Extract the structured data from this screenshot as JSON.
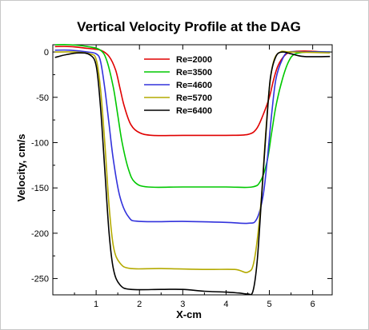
{
  "chart_data": {
    "type": "line",
    "title": "Vertical Velocity Profile at the DAG",
    "xlabel": "X-cm",
    "ylabel": "Velocity, cm/s",
    "xlim": [
      0,
      6.45
    ],
    "ylim": [
      -268,
      8
    ],
    "x_ticks": [
      1,
      2,
      3,
      4,
      5,
      6
    ],
    "y_ticks": [
      0,
      -50,
      -100,
      -150,
      -200,
      -250
    ],
    "grid": false,
    "legend_position": "top-center",
    "series": [
      {
        "name": "Re=2000",
        "color": "#e00000",
        "points": [
          [
            0.05,
            6
          ],
          [
            0.4,
            6
          ],
          [
            0.8,
            4
          ],
          [
            1.1,
            2
          ],
          [
            1.3,
            -5
          ],
          [
            1.45,
            -20
          ],
          [
            1.55,
            -40
          ],
          [
            1.65,
            -60
          ],
          [
            1.8,
            -80
          ],
          [
            2.0,
            -89
          ],
          [
            2.3,
            -92
          ],
          [
            3.0,
            -92
          ],
          [
            4.0,
            -92
          ],
          [
            4.5,
            -91
          ],
          [
            4.7,
            -85
          ],
          [
            4.85,
            -70
          ],
          [
            5.0,
            -50
          ],
          [
            5.1,
            -30
          ],
          [
            5.2,
            -15
          ],
          [
            5.35,
            -4
          ],
          [
            5.5,
            0
          ],
          [
            5.8,
            1
          ],
          [
            6.3,
            0
          ]
        ]
      },
      {
        "name": "Re=3500",
        "color": "#00c800",
        "points": [
          [
            0.05,
            8
          ],
          [
            0.4,
            8
          ],
          [
            0.8,
            6
          ],
          [
            1.1,
            2
          ],
          [
            1.25,
            -10
          ],
          [
            1.4,
            -40
          ],
          [
            1.5,
            -70
          ],
          [
            1.6,
            -100
          ],
          [
            1.75,
            -130
          ],
          [
            1.9,
            -144
          ],
          [
            2.2,
            -149
          ],
          [
            3.0,
            -149
          ],
          [
            4.0,
            -149
          ],
          [
            4.6,
            -149
          ],
          [
            4.8,
            -142
          ],
          [
            4.95,
            -120
          ],
          [
            5.05,
            -90
          ],
          [
            5.15,
            -60
          ],
          [
            5.3,
            -30
          ],
          [
            5.45,
            -10
          ],
          [
            5.6,
            -2
          ],
          [
            5.9,
            0
          ],
          [
            6.4,
            0
          ]
        ]
      },
      {
        "name": "Re=4600",
        "color": "#3232dc",
        "points": [
          [
            0.05,
            2
          ],
          [
            0.4,
            2
          ],
          [
            0.8,
            0
          ],
          [
            1.0,
            -2
          ],
          [
            1.1,
            -10
          ],
          [
            1.2,
            -40
          ],
          [
            1.3,
            -80
          ],
          [
            1.4,
            -120
          ],
          [
            1.55,
            -160
          ],
          [
            1.75,
            -182
          ],
          [
            2.0,
            -187
          ],
          [
            3.0,
            -187
          ],
          [
            4.0,
            -188
          ],
          [
            4.5,
            -189
          ],
          [
            4.7,
            -185
          ],
          [
            4.85,
            -160
          ],
          [
            4.95,
            -120
          ],
          [
            5.05,
            -70
          ],
          [
            5.15,
            -30
          ],
          [
            5.3,
            -8
          ],
          [
            5.45,
            0
          ],
          [
            5.8,
            0
          ],
          [
            6.4,
            0
          ]
        ]
      },
      {
        "name": "Re=5700",
        "color": "#b4aa00",
        "points": [
          [
            0.05,
            0
          ],
          [
            0.5,
            0
          ],
          [
            0.85,
            -2
          ],
          [
            1.0,
            -8
          ],
          [
            1.1,
            -40
          ],
          [
            1.2,
            -100
          ],
          [
            1.3,
            -170
          ],
          [
            1.4,
            -215
          ],
          [
            1.55,
            -233
          ],
          [
            1.8,
            -239
          ],
          [
            2.5,
            -239
          ],
          [
            3.5,
            -240
          ],
          [
            4.2,
            -240
          ],
          [
            4.5,
            -243
          ],
          [
            4.65,
            -230
          ],
          [
            4.8,
            -170
          ],
          [
            4.9,
            -100
          ],
          [
            5.0,
            -40
          ],
          [
            5.1,
            -10
          ],
          [
            5.25,
            0
          ],
          [
            5.5,
            0
          ],
          [
            6.4,
            -1
          ]
        ]
      },
      {
        "name": "Re=6400",
        "color": "#000000",
        "points": [
          [
            0.05,
            -6
          ],
          [
            0.3,
            -3
          ],
          [
            0.6,
            -1
          ],
          [
            0.85,
            -3
          ],
          [
            1.0,
            -15
          ],
          [
            1.1,
            -60
          ],
          [
            1.2,
            -130
          ],
          [
            1.3,
            -200
          ],
          [
            1.4,
            -240
          ],
          [
            1.55,
            -257
          ],
          [
            1.8,
            -262
          ],
          [
            2.5,
            -262
          ],
          [
            3.0,
            -262
          ],
          [
            3.5,
            -264
          ],
          [
            4.0,
            -265
          ],
          [
            4.3,
            -266
          ],
          [
            4.5,
            -267
          ],
          [
            4.62,
            -264
          ],
          [
            4.72,
            -230
          ],
          [
            4.82,
            -160
          ],
          [
            4.92,
            -90
          ],
          [
            5.02,
            -30
          ],
          [
            5.15,
            -5
          ],
          [
            5.3,
            0
          ],
          [
            5.5,
            -2
          ],
          [
            5.8,
            -5
          ],
          [
            6.4,
            -5
          ]
        ]
      }
    ]
  }
}
